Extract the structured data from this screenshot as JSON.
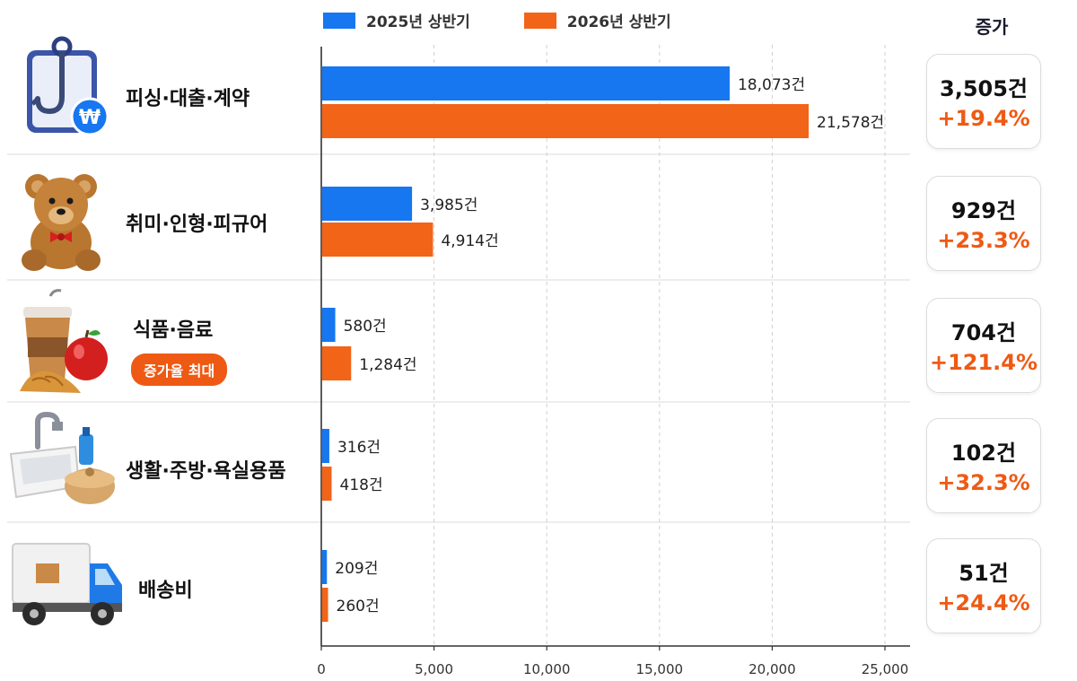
{
  "legend": [
    {
      "label": "2025년 상반기",
      "color": "#1677f0"
    },
    {
      "label": "2026년 상반기",
      "color": "#f26418"
    }
  ],
  "increase_header": "증가",
  "badge": "증가율 최대",
  "icons": [
    "fishing-hook-won-icon",
    "teddy-bear-icon",
    "coffee-apple-croissant-icon",
    "sink-dish-icon",
    "delivery-truck-icon"
  ],
  "rows": [
    {
      "label": "피싱·대출·계약",
      "v2025_label": "18,073건",
      "v2026_label": "21,578건",
      "inc_count": "3,505건",
      "inc_pct": "+19.4%"
    },
    {
      "label": "취미·인형·피규어",
      "v2025_label": "3,985건",
      "v2026_label": "4,914건",
      "inc_count": "929건",
      "inc_pct": "+23.3%"
    },
    {
      "label": "식품·음료",
      "v2025_label": "580건",
      "v2026_label": "1,284건",
      "inc_count": "704건",
      "inc_pct": "+121.4%"
    },
    {
      "label": "생활·주방·욕실용품",
      "v2025_label": "316건",
      "v2026_label": "418건",
      "inc_count": "102건",
      "inc_pct": "+32.3%"
    },
    {
      "label": "배송비",
      "v2025_label": "209건",
      "v2026_label": "260건",
      "inc_count": "51건",
      "inc_pct": "+24.4%"
    }
  ],
  "chart_data": {
    "type": "bar",
    "orientation": "horizontal",
    "categories": [
      "피싱·대출·계약",
      "취미·인형·피규어",
      "식품·음료",
      "생활·주방·욕실용품",
      "배송비"
    ],
    "series": [
      {
        "name": "2025년 상반기",
        "values": [
          18073,
          3985,
          580,
          316,
          209
        ],
        "color": "#1677f0"
      },
      {
        "name": "2026년 상반기",
        "values": [
          21578,
          4914,
          1284,
          418,
          260
        ],
        "color": "#f26418"
      }
    ],
    "xlim": [
      0,
      25000
    ],
    "xticks": [
      0,
      5000,
      10000,
      15000,
      20000,
      25000
    ],
    "xtick_labels": [
      "0",
      "5,000",
      "10,000",
      "15,000",
      "20,000",
      "25,000"
    ],
    "grid": "vertical dashed",
    "legend": "top"
  }
}
